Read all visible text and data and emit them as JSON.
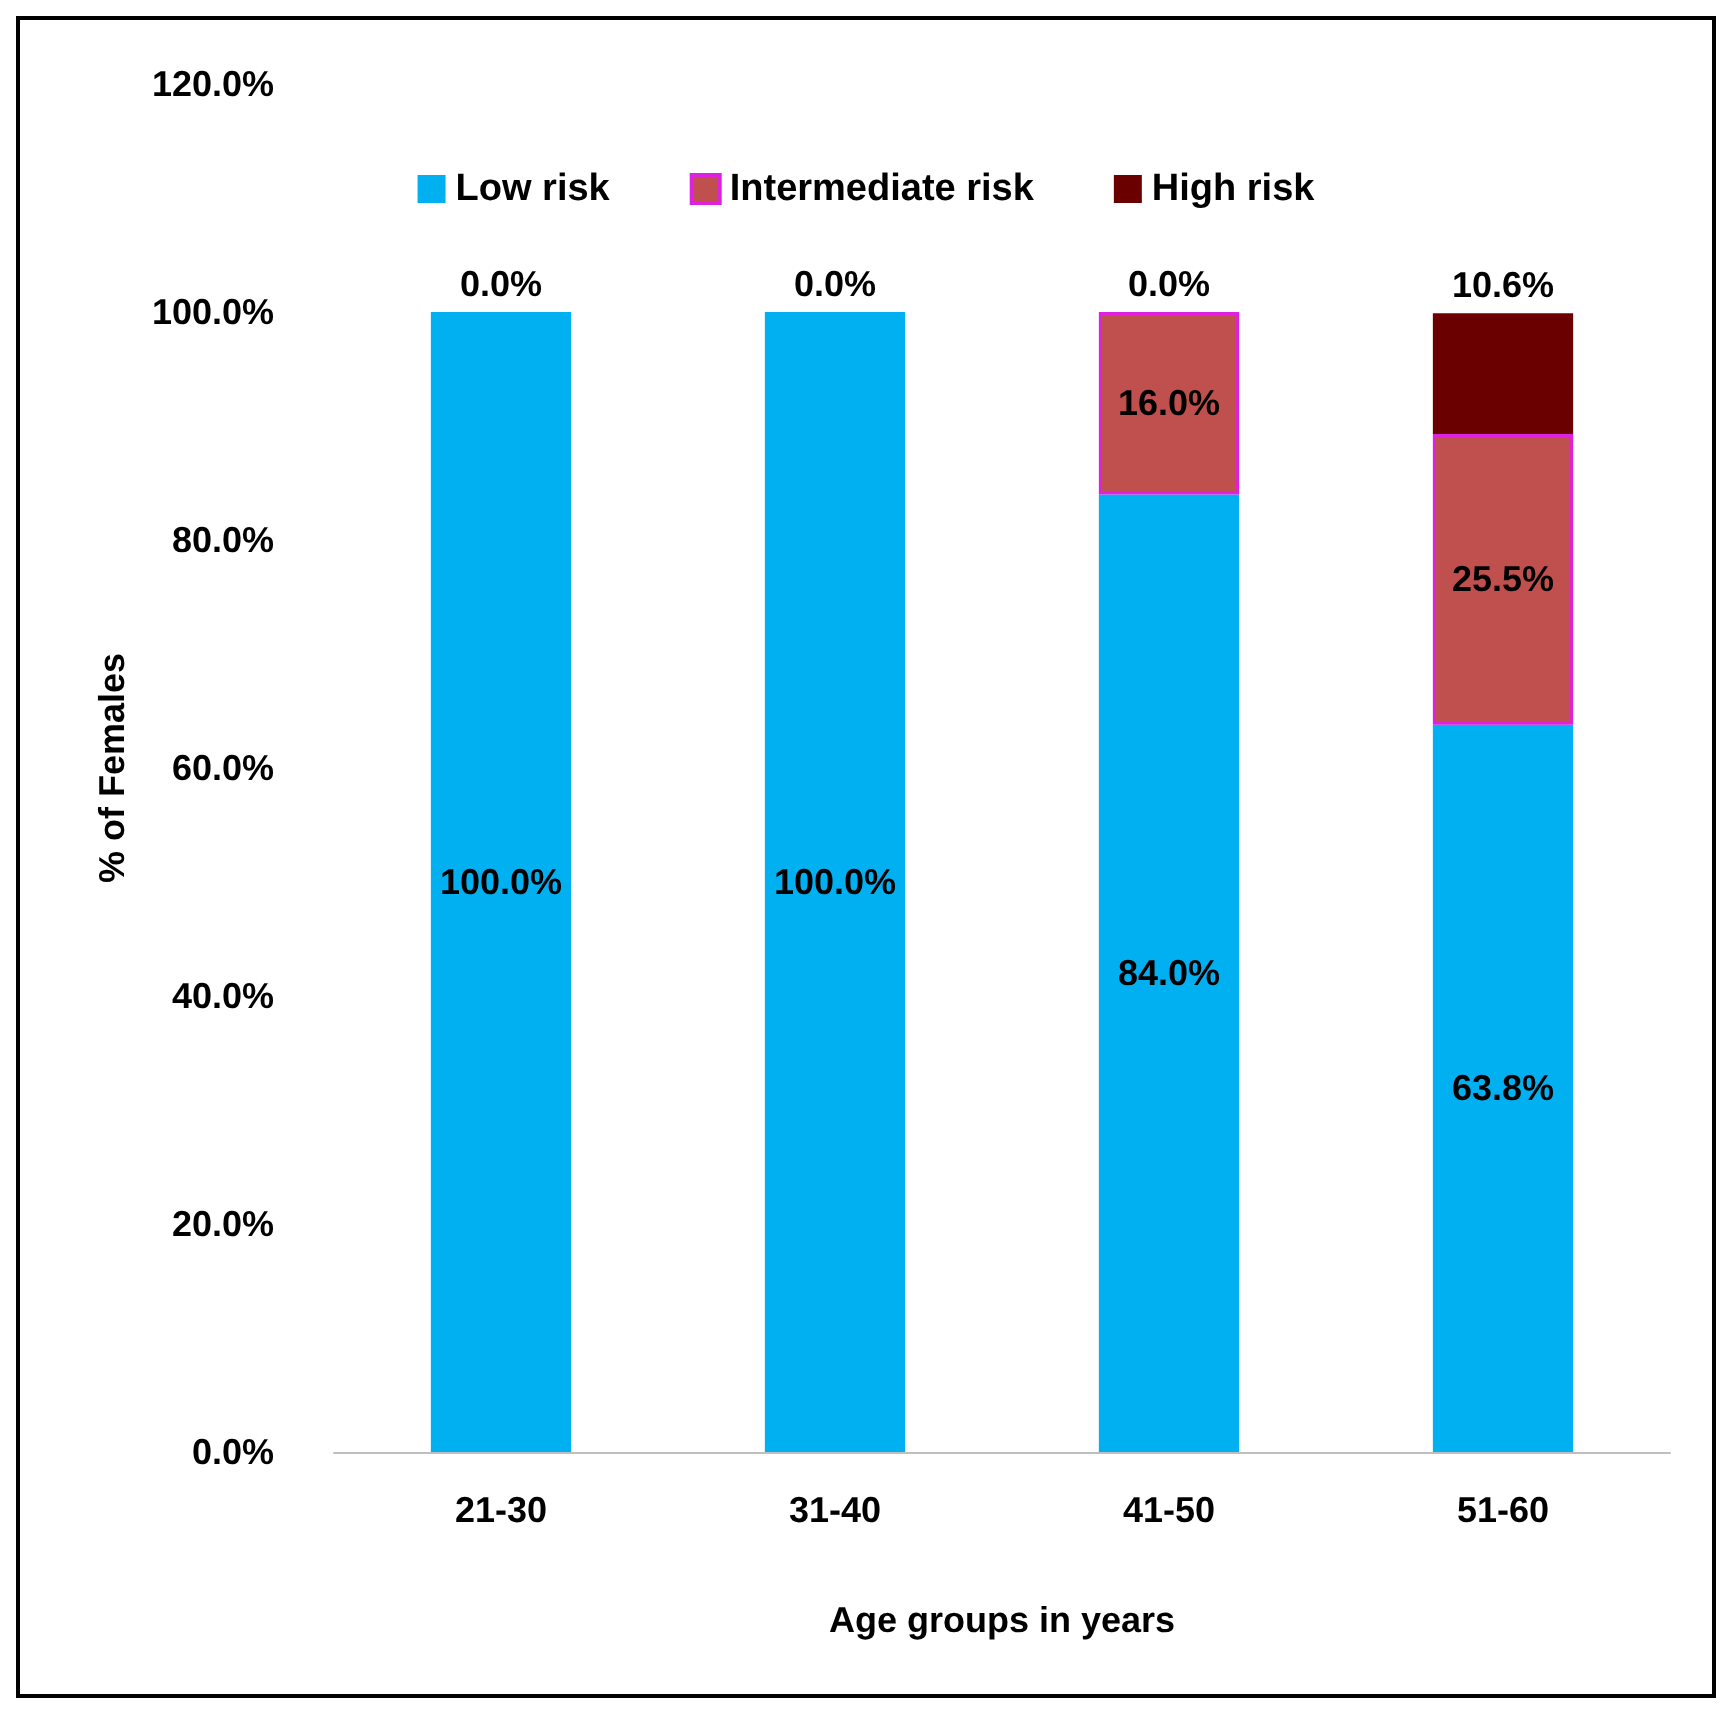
{
  "chart_data": {
    "type": "bar",
    "stacked": true,
    "xlabel": "Age groups in years",
    "ylabel": "% of Females",
    "categories": [
      "21-30",
      "31-40",
      "41-50",
      "51-60"
    ],
    "series": [
      {
        "name": "Low risk",
        "color": "#00b0f0",
        "values": [
          100,
          100,
          84.0,
          63.8
        ],
        "value_labels": [
          "100.0%",
          "100.0%",
          "84.0%",
          "63.8%"
        ]
      },
      {
        "name": "Intermediate risk",
        "color": "#c0504d",
        "values": [
          0,
          0,
          16.0,
          25.5
        ],
        "value_labels": [
          null,
          null,
          "16.0%",
          "25.5%"
        ]
      },
      {
        "name": "High risk",
        "color": "#6b0000",
        "values": [
          0,
          0,
          0,
          10.6
        ],
        "value_labels": [
          "0.0%",
          "0.0%",
          "0.0%",
          "10.6%"
        ]
      }
    ],
    "ylim": [
      0,
      120
    ],
    "yticks": [
      {
        "value": 0,
        "label": "0.0%"
      },
      {
        "value": 20,
        "label": "20.0%"
      },
      {
        "value": 40,
        "label": "40.0%"
      },
      {
        "value": 60,
        "label": "60.0%"
      },
      {
        "value": 80,
        "label": "80.0%"
      },
      {
        "value": 100,
        "label": "100.0%"
      },
      {
        "value": 120,
        "label": "120.0%"
      }
    ],
    "grid": false,
    "legend": "top"
  }
}
